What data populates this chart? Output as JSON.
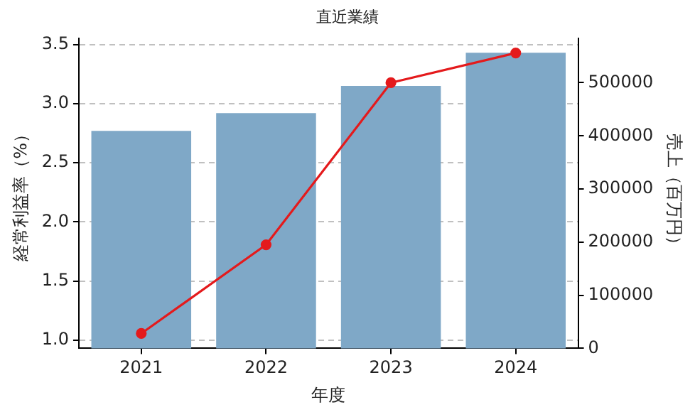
{
  "chart_data": {
    "type": "bar",
    "title": "直近業績",
    "xlabel": "年度",
    "ylabel": "経常利益率（%）",
    "y2label": "売上（百万円）",
    "categories": [
      "2021",
      "2022",
      "2023",
      "2024"
    ],
    "series": [
      {
        "color": "#7fa8c7",
        "values": [
          2.77,
          2.92,
          3.15,
          3.43
        ]
      },
      {
        "type": "line",
        "axis": "y2",
        "color": "#e41a1c",
        "values": [
          28000,
          195000,
          500000,
          556000
        ]
      }
    ],
    "ylim": [
      0.93,
      3.55
    ],
    "yticks": [
      {
        "value": 1,
        "label": "1.0"
      },
      1.5,
      {
        "value": 2,
        "label": "2.0"
      },
      2.5,
      {
        "value": 3,
        "label": "3.0"
      },
      3.5
    ],
    "y2lim": [
      0,
      583000
    ],
    "y2ticks": [
      0,
      100000,
      200000,
      300000,
      400000,
      500000
    ],
    "grid": "y",
    "marker": "circle",
    "line_style": "solid",
    "legend": false
  }
}
